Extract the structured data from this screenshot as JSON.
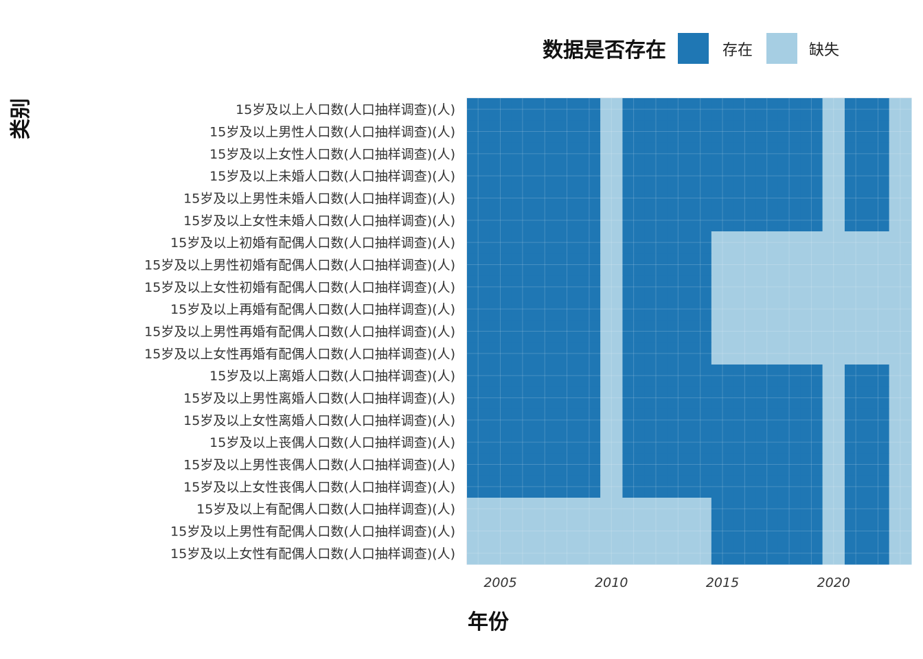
{
  "chart_data": {
    "type": "heatmap",
    "title": "",
    "xlabel": "年份",
    "ylabel": "类别",
    "legend": {
      "title": "数据是否存在",
      "placement": "top-right",
      "items": [
        {
          "label": "存在",
          "color": "#1f77b4"
        },
        {
          "label": "缺失",
          "color": "#a6cee3"
        }
      ]
    },
    "x": [
      2004,
      2005,
      2006,
      2007,
      2008,
      2009,
      2010,
      2011,
      2012,
      2013,
      2014,
      2015,
      2016,
      2017,
      2018,
      2019,
      2020,
      2021,
      2022,
      2023
    ],
    "x_ticks": [
      2005,
      2010,
      2015,
      2020
    ],
    "categories": [
      "15岁及以上人口数(人口抽样调查)(人)",
      "15岁及以上男性人口数(人口抽样调查)(人)",
      "15岁及以上女性人口数(人口抽样调查)(人)",
      "15岁及以上未婚人口数(人口抽样调查)(人)",
      "15岁及以上男性未婚人口数(人口抽样调查)(人)",
      "15岁及以上女性未婚人口数(人口抽样调查)(人)",
      "15岁及以上初婚有配偶人口数(人口抽样调查)(人)",
      "15岁及以上男性初婚有配偶人口数(人口抽样调查)(人)",
      "15岁及以上女性初婚有配偶人口数(人口抽样调查)(人)",
      "15岁及以上再婚有配偶人口数(人口抽样调查)(人)",
      "15岁及以上男性再婚有配偶人口数(人口抽样调查)(人)",
      "15岁及以上女性再婚有配偶人口数(人口抽样调查)(人)",
      "15岁及以上离婚人口数(人口抽样调查)(人)",
      "15岁及以上男性离婚人口数(人口抽样调查)(人)",
      "15岁及以上女性离婚人口数(人口抽样调查)(人)",
      "15岁及以上丧偶人口数(人口抽样调查)(人)",
      "15岁及以上男性丧偶人口数(人口抽样调查)(人)",
      "15岁及以上女性丧偶人口数(人口抽样调查)(人)",
      "15岁及以上有配偶人口数(人口抽样调查)(人)",
      "15岁及以上男性有配偶人口数(人口抽样调查)(人)",
      "15岁及以上女性有配偶人口数(人口抽样调查)(人)"
    ],
    "values": [
      [
        1,
        1,
        1,
        1,
        1,
        1,
        0,
        1,
        1,
        1,
        1,
        1,
        1,
        1,
        1,
        1,
        0,
        1,
        1,
        0
      ],
      [
        1,
        1,
        1,
        1,
        1,
        1,
        0,
        1,
        1,
        1,
        1,
        1,
        1,
        1,
        1,
        1,
        0,
        1,
        1,
        0
      ],
      [
        1,
        1,
        1,
        1,
        1,
        1,
        0,
        1,
        1,
        1,
        1,
        1,
        1,
        1,
        1,
        1,
        0,
        1,
        1,
        0
      ],
      [
        1,
        1,
        1,
        1,
        1,
        1,
        0,
        1,
        1,
        1,
        1,
        1,
        1,
        1,
        1,
        1,
        0,
        1,
        1,
        0
      ],
      [
        1,
        1,
        1,
        1,
        1,
        1,
        0,
        1,
        1,
        1,
        1,
        1,
        1,
        1,
        1,
        1,
        0,
        1,
        1,
        0
      ],
      [
        1,
        1,
        1,
        1,
        1,
        1,
        0,
        1,
        1,
        1,
        1,
        1,
        1,
        1,
        1,
        1,
        0,
        1,
        1,
        0
      ],
      [
        1,
        1,
        1,
        1,
        1,
        1,
        0,
        1,
        1,
        1,
        1,
        0,
        0,
        0,
        0,
        0,
        0,
        0,
        0,
        0
      ],
      [
        1,
        1,
        1,
        1,
        1,
        1,
        0,
        1,
        1,
        1,
        1,
        0,
        0,
        0,
        0,
        0,
        0,
        0,
        0,
        0
      ],
      [
        1,
        1,
        1,
        1,
        1,
        1,
        0,
        1,
        1,
        1,
        1,
        0,
        0,
        0,
        0,
        0,
        0,
        0,
        0,
        0
      ],
      [
        1,
        1,
        1,
        1,
        1,
        1,
        0,
        1,
        1,
        1,
        1,
        0,
        0,
        0,
        0,
        0,
        0,
        0,
        0,
        0
      ],
      [
        1,
        1,
        1,
        1,
        1,
        1,
        0,
        1,
        1,
        1,
        1,
        0,
        0,
        0,
        0,
        0,
        0,
        0,
        0,
        0
      ],
      [
        1,
        1,
        1,
        1,
        1,
        1,
        0,
        1,
        1,
        1,
        1,
        0,
        0,
        0,
        0,
        0,
        0,
        0,
        0,
        0
      ],
      [
        1,
        1,
        1,
        1,
        1,
        1,
        0,
        1,
        1,
        1,
        1,
        1,
        1,
        1,
        1,
        1,
        0,
        1,
        1,
        0
      ],
      [
        1,
        1,
        1,
        1,
        1,
        1,
        0,
        1,
        1,
        1,
        1,
        1,
        1,
        1,
        1,
        1,
        0,
        1,
        1,
        0
      ],
      [
        1,
        1,
        1,
        1,
        1,
        1,
        0,
        1,
        1,
        1,
        1,
        1,
        1,
        1,
        1,
        1,
        0,
        1,
        1,
        0
      ],
      [
        1,
        1,
        1,
        1,
        1,
        1,
        0,
        1,
        1,
        1,
        1,
        1,
        1,
        1,
        1,
        1,
        0,
        1,
        1,
        0
      ],
      [
        1,
        1,
        1,
        1,
        1,
        1,
        0,
        1,
        1,
        1,
        1,
        1,
        1,
        1,
        1,
        1,
        0,
        1,
        1,
        0
      ],
      [
        1,
        1,
        1,
        1,
        1,
        1,
        0,
        1,
        1,
        1,
        1,
        1,
        1,
        1,
        1,
        1,
        0,
        1,
        1,
        0
      ],
      [
        0,
        0,
        0,
        0,
        0,
        0,
        0,
        0,
        0,
        0,
        0,
        1,
        1,
        1,
        1,
        1,
        0,
        1,
        1,
        0
      ],
      [
        0,
        0,
        0,
        0,
        0,
        0,
        0,
        0,
        0,
        0,
        0,
        1,
        1,
        1,
        1,
        1,
        0,
        1,
        1,
        0
      ],
      [
        0,
        0,
        0,
        0,
        0,
        0,
        0,
        0,
        0,
        0,
        0,
        1,
        1,
        1,
        1,
        1,
        0,
        1,
        1,
        0
      ]
    ],
    "value_labels": {
      "1": "存在",
      "0": "缺失"
    },
    "grid": true
  }
}
